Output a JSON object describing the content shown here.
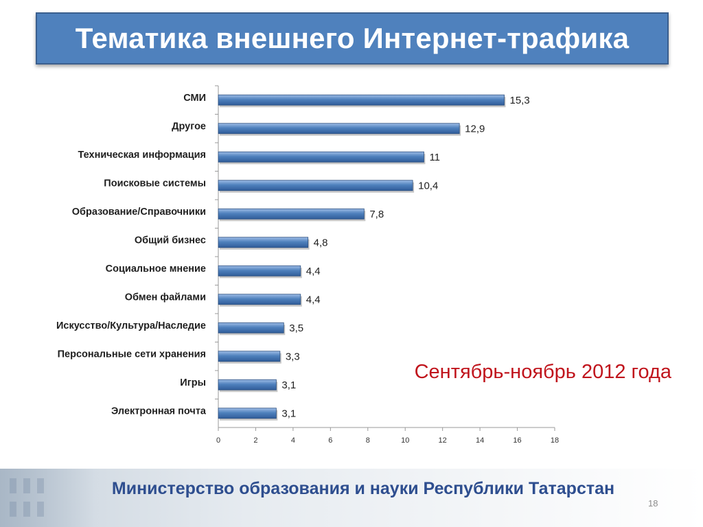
{
  "title": "Тематика внешнего Интернет-трафика",
  "period": "Сентябрь-ноябрь 2012 года",
  "footer": "Министерство образования и науки Республики Татарстан",
  "page_number": "18",
  "colors": {
    "title_bg": "#4f81bd",
    "bar": "#4f81bd",
    "period_text": "#c0141c",
    "footer_text": "#2e4e8f"
  },
  "chart_data": {
    "type": "bar",
    "orientation": "horizontal",
    "categories": [
      "СМИ",
      "Другое",
      "Техническая информация",
      "Поисковые системы",
      "Образование/Справочники",
      "Общий бизнес",
      "Социальное мнение",
      "Обмен файлами",
      "Искусство/Культура/Наследие",
      "Персональные сети хранения",
      "Игры",
      "Электронная почта"
    ],
    "values": [
      15.3,
      12.9,
      11,
      10.4,
      7.8,
      4.8,
      4.4,
      4.4,
      3.5,
      3.3,
      3.1,
      3.1
    ],
    "value_labels": [
      "15,3",
      "12,9",
      "11",
      "10,4",
      "7,8",
      "4,8",
      "4,4",
      "4,4",
      "3,5",
      "3,3",
      "3,1",
      "3,1"
    ],
    "xlim": [
      0,
      18
    ],
    "xticks": [
      "0",
      "2",
      "4",
      "6",
      "8",
      "10",
      "12",
      "14",
      "16",
      "18"
    ],
    "grid": false,
    "legend": "none"
  }
}
